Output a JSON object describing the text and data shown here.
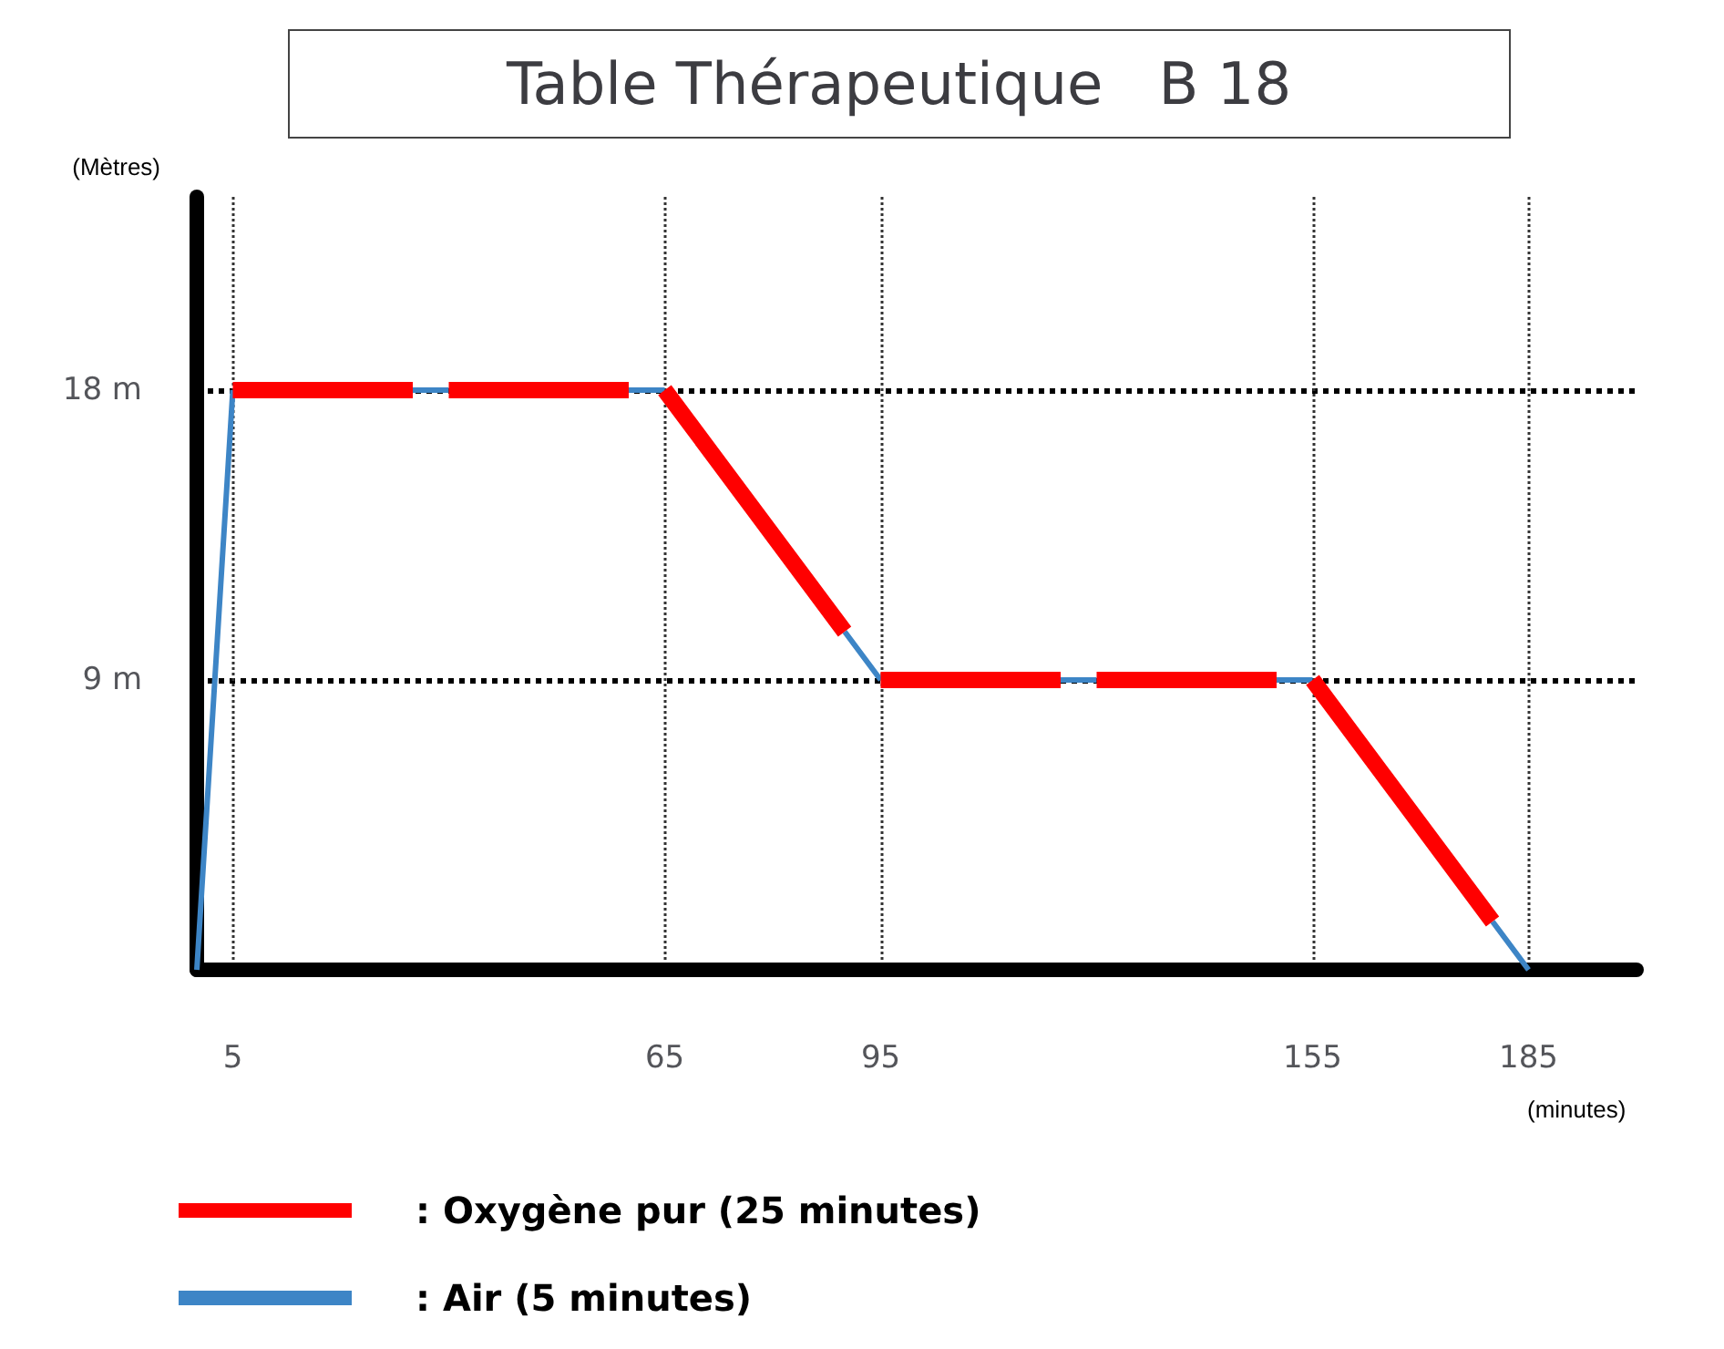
{
  "chart_data": {
    "type": "line",
    "title": "Table Thérapeutique   B 18",
    "xlabel": "(minutes)",
    "ylabel": "(Mètres)",
    "xlim": [
      0,
      200
    ],
    "xticks": [
      5,
      65,
      95,
      155,
      185
    ],
    "ylim": [
      0,
      24
    ],
    "yticks": [
      {
        "value": 9,
        "label": "9 m"
      },
      {
        "value": 18,
        "label": "18 m"
      }
    ],
    "grid": true,
    "legend": "bottom left",
    "marker": "none",
    "line_style": "solid",
    "series": [
      {
        "name": ": Air (5 minutes)",
        "color": "#3d85c6",
        "x": [
          0,
          5,
          null,
          30,
          35,
          null,
          60,
          65,
          null,
          90,
          95,
          null,
          120,
          125,
          null,
          150,
          155,
          null,
          180,
          185
        ],
        "values": [
          0,
          18,
          null,
          18,
          18,
          null,
          18,
          18,
          null,
          10.5,
          9,
          null,
          9,
          9,
          null,
          9,
          9,
          null,
          1.5,
          0
        ]
      },
      {
        "name": ": Oxygène pur (25 minutes)",
        "color": "#ff0000",
        "x": [
          5,
          30,
          null,
          35,
          60,
          null,
          65,
          90,
          null,
          95,
          120,
          null,
          125,
          150,
          null,
          155,
          180
        ],
        "values": [
          18,
          18,
          null,
          18,
          18,
          null,
          18,
          10.5,
          null,
          9,
          9,
          null,
          9,
          9,
          null,
          9,
          1.5
        ]
      }
    ]
  }
}
